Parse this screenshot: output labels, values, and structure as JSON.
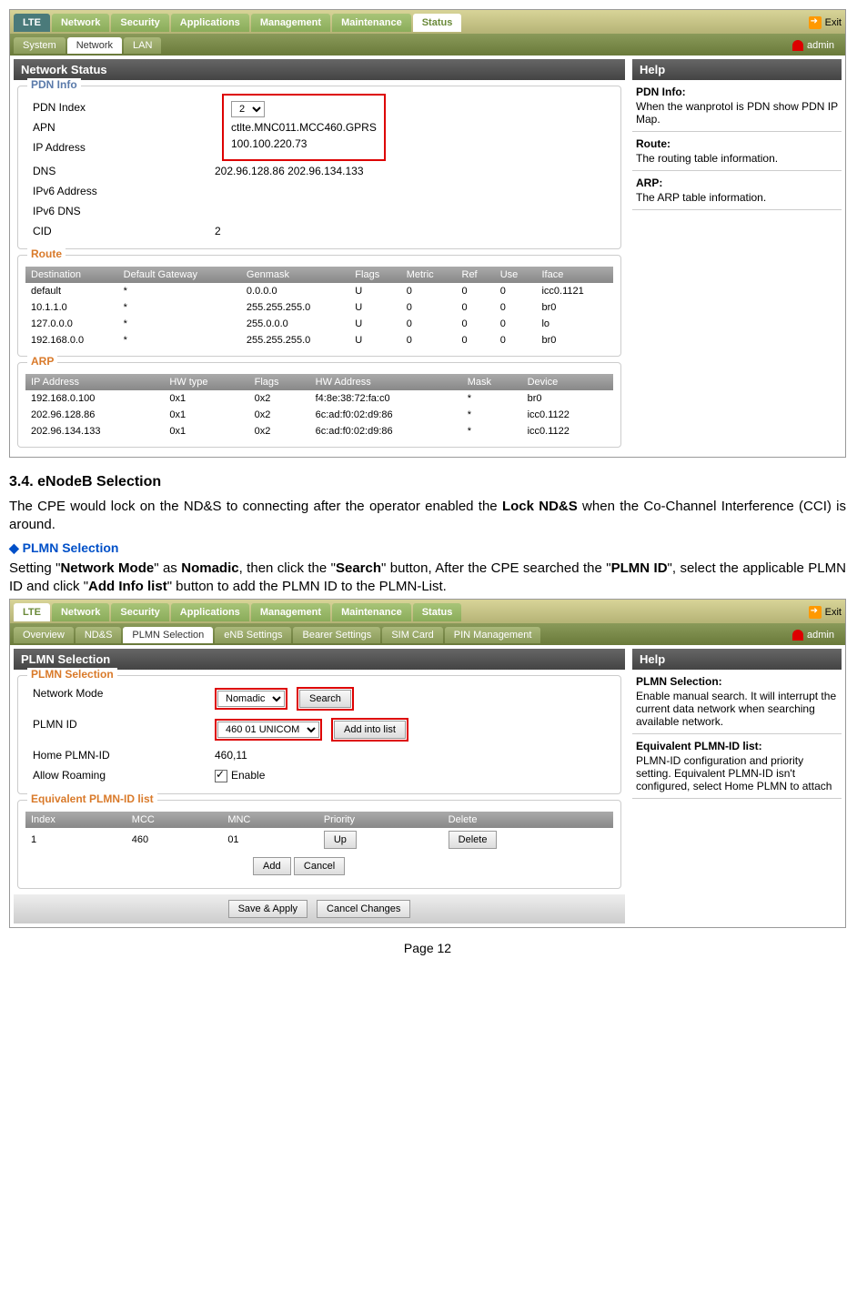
{
  "shot1": {
    "mainTabs": [
      "LTE",
      "Network",
      "Security",
      "Applications",
      "Management",
      "Maintenance",
      "Status"
    ],
    "mainActive": "Status",
    "exit": "Exit",
    "subTabs": [
      "System",
      "Network",
      "LAN"
    ],
    "subActive": "Network",
    "user": "admin",
    "panelTitle": "Network  Status",
    "helpTitle": "Help",
    "pdn": {
      "title": "PDN Info",
      "rows": [
        {
          "k": "PDN Index",
          "v": "2",
          "select": true
        },
        {
          "k": "APN",
          "v": "ctlte.MNC011.MCC460.GPRS"
        },
        {
          "k": "IP Address",
          "v": "100.100.220.73"
        },
        {
          "k": "DNS",
          "v": "202.96.128.86    202.96.134.133"
        },
        {
          "k": "IPv6 Address",
          "v": ""
        },
        {
          "k": "IPv6 DNS",
          "v": ""
        },
        {
          "k": "CID",
          "v": "2"
        }
      ]
    },
    "route": {
      "title": "Route",
      "headers": [
        "Destination",
        "Default Gateway",
        "Genmask",
        "Flags",
        "Metric",
        "Ref",
        "Use",
        "Iface"
      ],
      "rows": [
        [
          "default",
          "*",
          "0.0.0.0",
          "U",
          "0",
          "0",
          "0",
          "icc0.1121"
        ],
        [
          "10.1.1.0",
          "*",
          "255.255.255.0",
          "U",
          "0",
          "0",
          "0",
          "br0"
        ],
        [
          "127.0.0.0",
          "*",
          "255.0.0.0",
          "U",
          "0",
          "0",
          "0",
          "lo"
        ],
        [
          "192.168.0.0",
          "*",
          "255.255.255.0",
          "U",
          "0",
          "0",
          "0",
          "br0"
        ]
      ]
    },
    "arp": {
      "title": "ARP",
      "headers": [
        "IP Address",
        "HW type",
        "Flags",
        "HW Address",
        "Mask",
        "Device"
      ],
      "rows": [
        [
          "192.168.0.100",
          "0x1",
          "0x2",
          "f4:8e:38:72:fa:c0",
          "*",
          "br0"
        ],
        [
          "202.96.128.86",
          "0x1",
          "0x2",
          "6c:ad:f0:02:d9:86",
          "*",
          "icc0.1122"
        ],
        [
          "202.96.134.133",
          "0x1",
          "0x2",
          "6c:ad:f0:02:d9:86",
          "*",
          "icc0.1122"
        ]
      ]
    },
    "help": [
      {
        "t": "PDN Info:",
        "b": "When the wanprotol is PDN show PDN IP Map."
      },
      {
        "t": "Route:",
        "b": "The routing table information."
      },
      {
        "t": "ARP:",
        "b": "The ARP table information."
      }
    ]
  },
  "doc": {
    "h2": "3.4.    eNodeB Selection",
    "p1a": "The CPE would lock on the ND&S to connecting after the operator enabled the ",
    "p1b": "Lock ND&S",
    "p1c": " when the Co-Channel Interference (CCI) is around.",
    "sub": "PLMN Selection",
    "p2_parts": [
      "Setting \"",
      "Network Mode",
      "\" as ",
      "Nomadic",
      ", then click the \"",
      "Search",
      "\" button, After the CPE searched the \"",
      "PLMN ID",
      "\", select the applicable PLMN ID and click \"",
      "Add Info list",
      "\" button to add the PLMN ID to the PLMN-List."
    ]
  },
  "shot2": {
    "mainTabs": [
      "LTE",
      "Network",
      "Security",
      "Applications",
      "Management",
      "Maintenance",
      "Status"
    ],
    "mainActive": "LTE",
    "exit": "Exit",
    "subTabs": [
      "Overview",
      "ND&S",
      "PLMN Selection",
      "eNB Settings",
      "Bearer Settings",
      "SIM Card",
      "PIN Management"
    ],
    "subActive": "PLMN Selection",
    "user": "admin",
    "panelTitle": "PLMN Selection",
    "helpTitle": "Help",
    "sel": {
      "title": "PLMN Selection",
      "networkMode": {
        "label": "Network Mode",
        "value": "Nomadic",
        "btn": "Search"
      },
      "plmnId": {
        "label": "PLMN ID",
        "value": "460 01 UNICOM",
        "btn": "Add into list"
      },
      "home": {
        "label": "Home PLMN-ID",
        "value": "460,11"
      },
      "roaming": {
        "label": "Allow Roaming",
        "value": "Enable"
      }
    },
    "eq": {
      "title": "Equivalent PLMN-ID list",
      "headers": [
        "Index",
        "MCC",
        "MNC",
        "Priority",
        "Delete"
      ],
      "row": {
        "index": "1",
        "mcc": "460",
        "mnc": "01",
        "up": "Up",
        "del": "Delete"
      },
      "add": "Add",
      "cancel": "Cancel"
    },
    "footer": {
      "save": "Save & Apply",
      "cancel": "Cancel Changes"
    },
    "help": [
      {
        "t": "PLMN Selection:",
        "b": "Enable manual search. It will interrupt the current data network when searching available network."
      },
      {
        "t": "Equivalent PLMN-ID list:",
        "b": "PLMN-ID configuration and priority setting. Equivalent PLMN-ID isn't configured, select Home PLMN to attach"
      }
    ]
  },
  "pageNum": "Page 12"
}
